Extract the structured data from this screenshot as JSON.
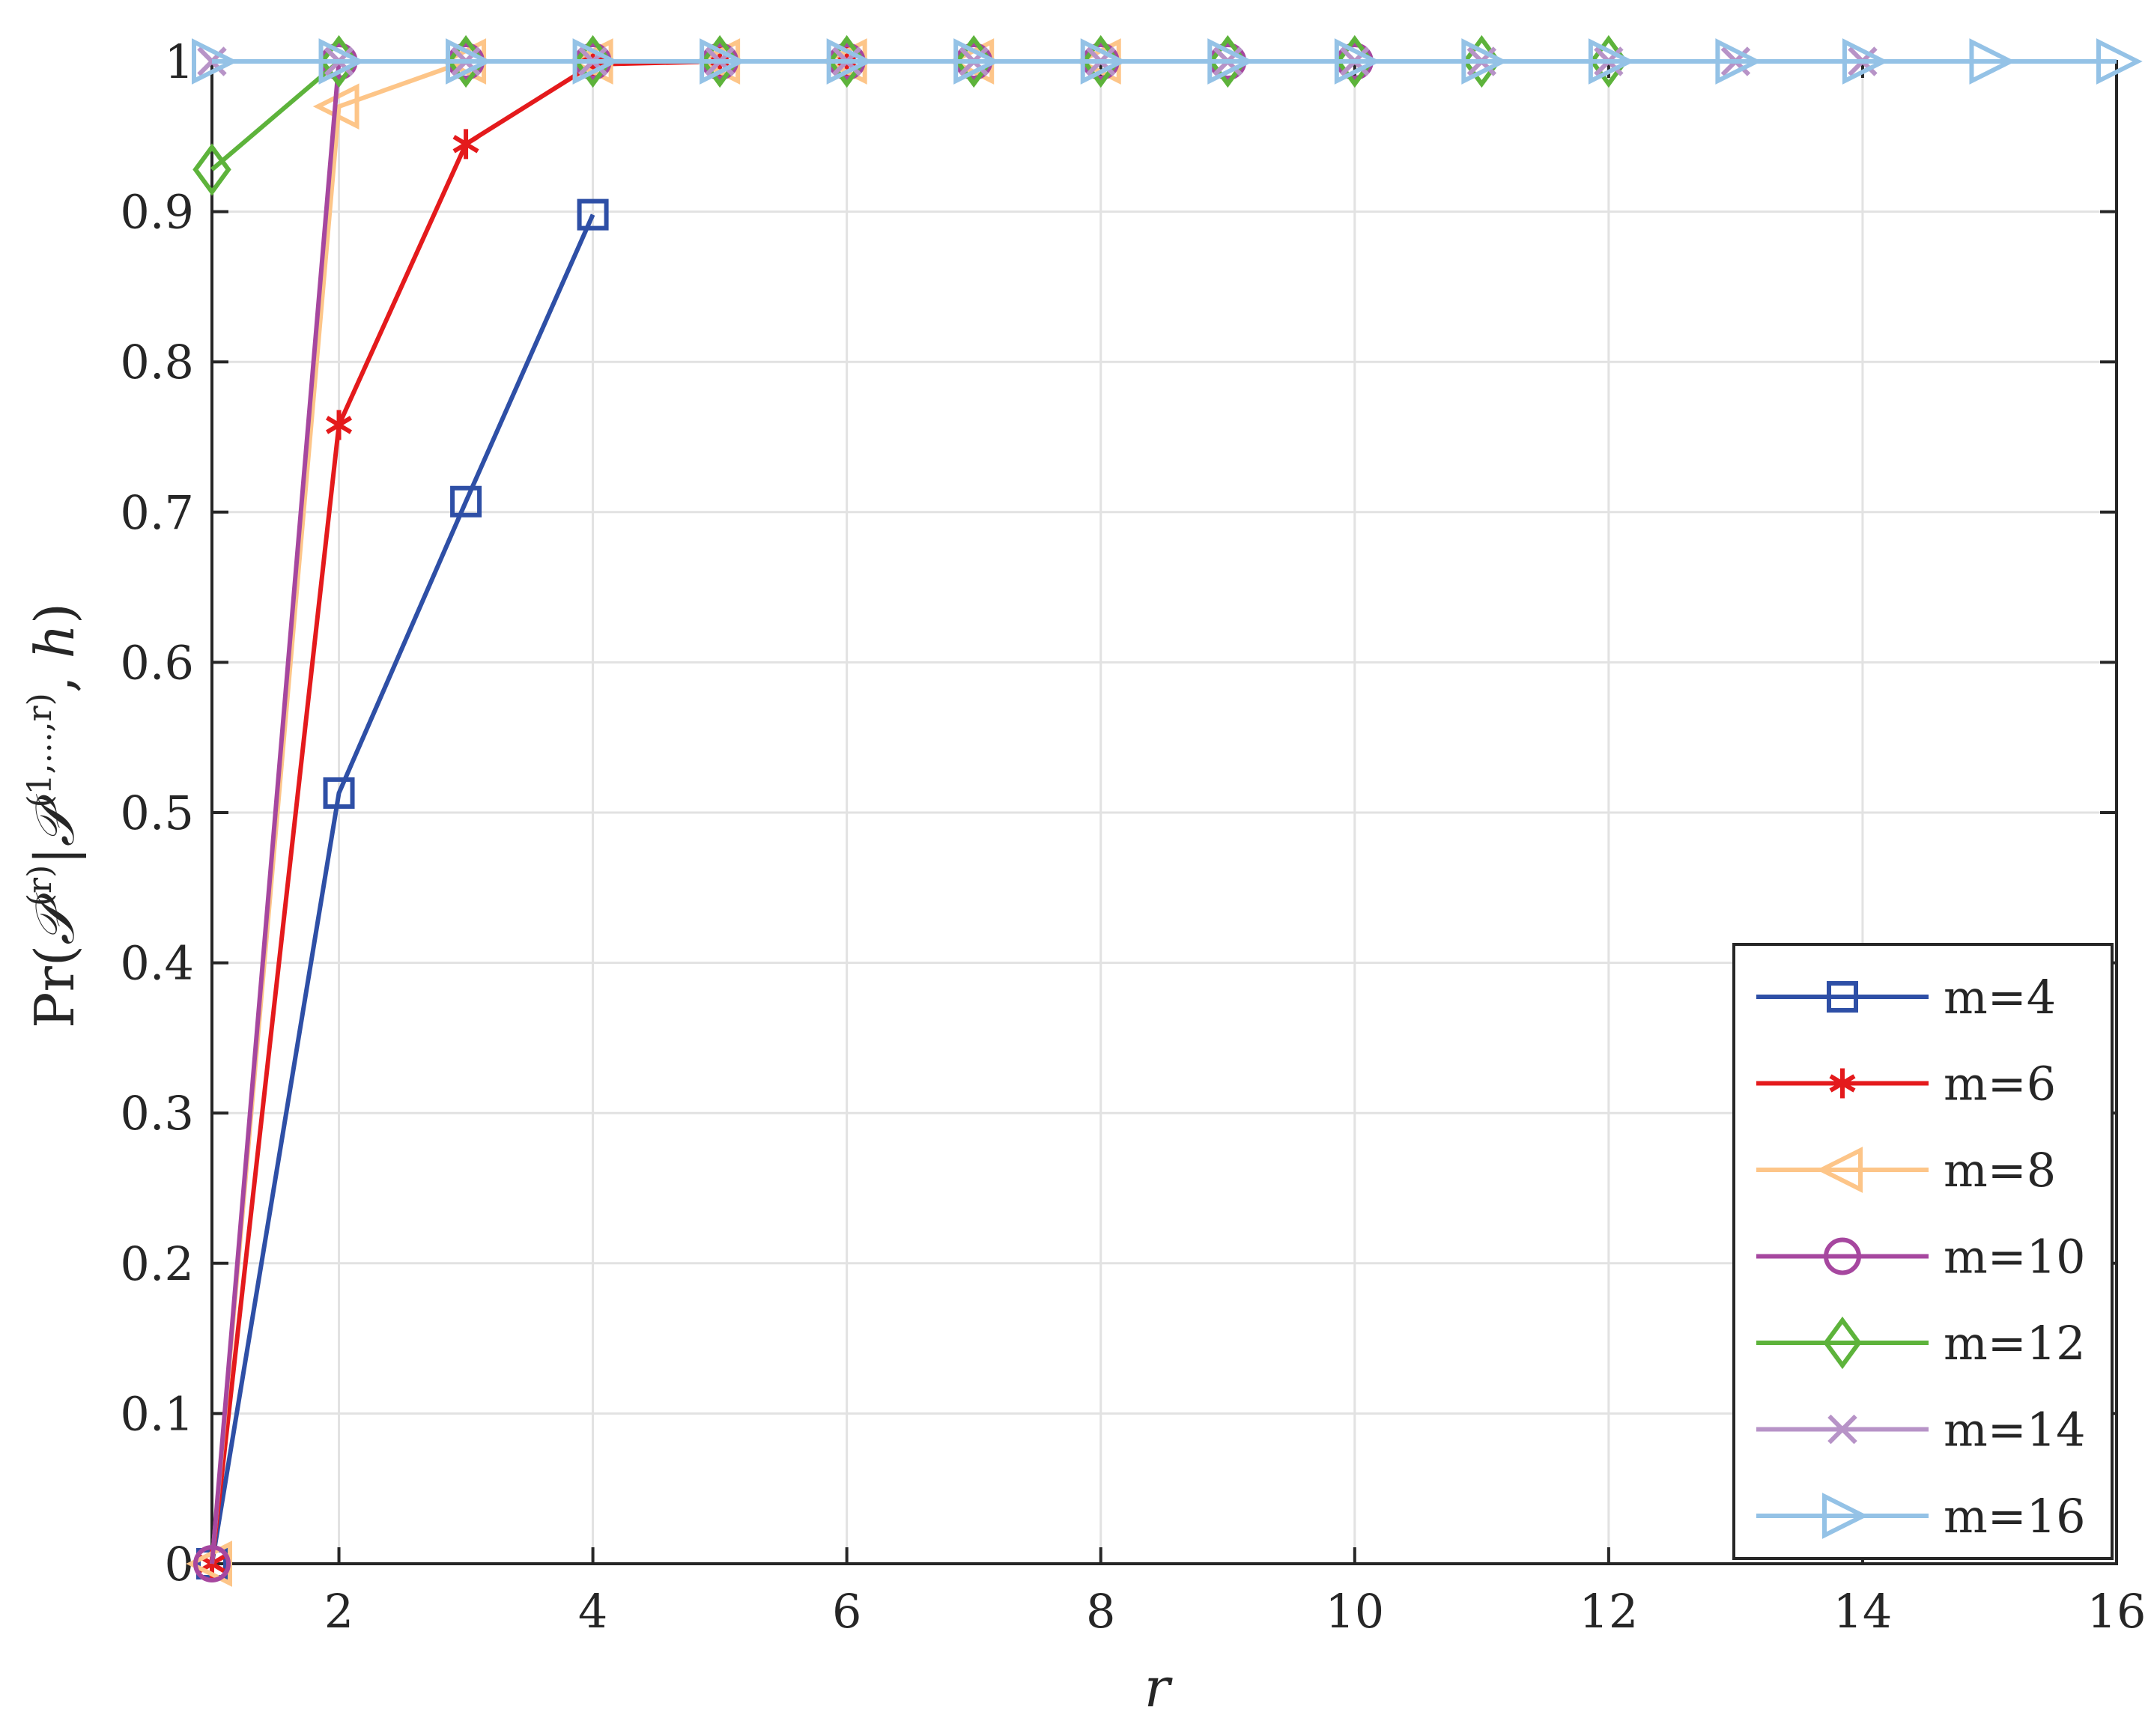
{
  "chart_data": {
    "type": "line",
    "title": "",
    "xlabel": "r",
    "ylabel_parts": {
      "pr": "Pr",
      "open": "(",
      "p1": "𝒫",
      "sup1": "(r)",
      "bar": "|",
      "p2": "𝒫",
      "sup2": "(1,...,r)",
      "comma": ", ",
      "h": "h",
      "close": ")"
    },
    "xlim": [
      1,
      16
    ],
    "ylim": [
      0,
      1
    ],
    "xticks": [
      2,
      4,
      6,
      8,
      10,
      12,
      14,
      16
    ],
    "xtick_labels": [
      "2",
      "4",
      "6",
      "8",
      "10",
      "12",
      "14",
      "16"
    ],
    "yticks": [
      0,
      0.1,
      0.2,
      0.3,
      0.4,
      0.5,
      0.6,
      0.7,
      0.8,
      0.9,
      1
    ],
    "ytick_labels": [
      "0",
      "0.1",
      "0.2",
      "0.3",
      "0.4",
      "0.5",
      "0.6",
      "0.7",
      "0.8",
      "0.9",
      "1"
    ],
    "grid": true,
    "legend_position": "bottom-right",
    "series": [
      {
        "name": "m=4",
        "color": "#2e4fa6",
        "marker": "square",
        "x": [
          1,
          2,
          3,
          4
        ],
        "y": [
          0,
          0.513,
          0.707,
          0.898
        ]
      },
      {
        "name": "m=6",
        "color": "#e41a1c",
        "marker": "asterisk",
        "x": [
          1,
          2,
          3,
          4,
          5,
          6
        ],
        "y": [
          0,
          0.758,
          0.945,
          0.998,
          1,
          1
        ]
      },
      {
        "name": "m=8",
        "color": "#fdc588",
        "marker": "triangle-left",
        "x": [
          1,
          2,
          3,
          4,
          5,
          6,
          7,
          8
        ],
        "y": [
          0,
          0.97,
          1,
          1,
          1,
          1,
          1,
          1
        ]
      },
      {
        "name": "m=10",
        "color": "#a6479f",
        "marker": "circle",
        "x": [
          1,
          2,
          3,
          4,
          5,
          6,
          7,
          8,
          9,
          10
        ],
        "y": [
          0,
          1,
          1,
          1,
          1,
          1,
          1,
          1,
          1,
          1
        ]
      },
      {
        "name": "m=12",
        "color": "#5db33b",
        "marker": "diamond",
        "x": [
          1,
          2,
          3,
          4,
          5,
          6,
          7,
          8,
          9,
          10,
          11,
          12
        ],
        "y": [
          0.928,
          1,
          1,
          1,
          1,
          1,
          1,
          1,
          1,
          1,
          1,
          1
        ]
      },
      {
        "name": "m=14",
        "color": "#b793c7",
        "marker": "x",
        "x": [
          1,
          2,
          3,
          4,
          5,
          6,
          7,
          8,
          9,
          10,
          11,
          12,
          13,
          14
        ],
        "y": [
          1,
          1,
          1,
          1,
          1,
          1,
          1,
          1,
          1,
          1,
          1,
          1,
          1,
          1
        ]
      },
      {
        "name": "m=16",
        "color": "#94c2e6",
        "marker": "triangle-right",
        "x": [
          1,
          2,
          3,
          4,
          5,
          6,
          7,
          8,
          9,
          10,
          11,
          12,
          13,
          14,
          15,
          16
        ],
        "y": [
          1,
          1,
          1,
          1,
          1,
          1,
          1,
          1,
          1,
          1,
          1,
          1,
          1,
          1,
          1,
          1
        ]
      }
    ]
  }
}
